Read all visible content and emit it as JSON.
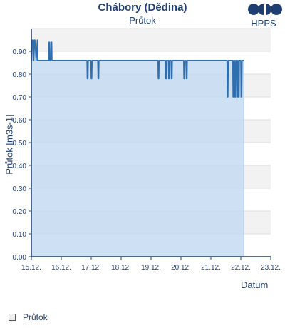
{
  "chart_data": {
    "type": "area",
    "title": "Chábory (Dědina)",
    "subtitle": "Průtok",
    "xlabel": "Datum",
    "ylabel": "Průtok [m3s-1]",
    "ylim": [
      0,
      1.0
    ],
    "yticks": [
      "0.00",
      "0.10",
      "0.20",
      "0.30",
      "0.40",
      "0.50",
      "0.60",
      "0.70",
      "0.80",
      "0.90"
    ],
    "xlim": [
      "15.12.",
      "23.12."
    ],
    "xticks": [
      "15.12.",
      "16.12.",
      "17.12.",
      "18.12.",
      "19.12.",
      "20.12.",
      "21.12.",
      "22.12.",
      "23.12."
    ],
    "grid": true,
    "legend": "bottom-left",
    "series": [
      {
        "name": "Průtok",
        "x": [
          0.0,
          0.01,
          0.04,
          0.07,
          0.08,
          0.11,
          0.12,
          0.16,
          0.2,
          0.21,
          0.58,
          0.59,
          0.61,
          0.62,
          0.65,
          0.66,
          0.68,
          0.69,
          1.86,
          1.87,
          1.89,
          1.9,
          1.99,
          2.0,
          2.02,
          2.03,
          2.22,
          2.23,
          2.25,
          2.26,
          4.23,
          4.24,
          4.26,
          4.27,
          4.48,
          4.49,
          4.51,
          4.52,
          4.58,
          4.59,
          4.61,
          4.62,
          4.67,
          4.68,
          4.7,
          4.71,
          5.09,
          5.1,
          5.12,
          5.13,
          5.17,
          5.18,
          5.2,
          5.21,
          6.54,
          6.55,
          6.57,
          6.58,
          6.73,
          6.74,
          6.76,
          6.77,
          6.79,
          6.8,
          6.82,
          6.83,
          6.86,
          6.87,
          6.89,
          6.9,
          6.91,
          6.92,
          6.94,
          6.95,
          7.0,
          7.01,
          7.03,
          7.04,
          7.1
        ],
        "values": [
          0.95,
          0.86,
          0.95,
          0.95,
          0.86,
          0.95,
          0.95,
          0.86,
          0.95,
          0.86,
          0.86,
          0.94,
          0.94,
          0.86,
          0.86,
          0.94,
          0.94,
          0.86,
          0.86,
          0.78,
          0.78,
          0.86,
          0.86,
          0.78,
          0.78,
          0.86,
          0.86,
          0.78,
          0.78,
          0.86,
          0.86,
          0.78,
          0.78,
          0.86,
          0.86,
          0.78,
          0.78,
          0.86,
          0.86,
          0.78,
          0.78,
          0.86,
          0.86,
          0.78,
          0.78,
          0.86,
          0.86,
          0.78,
          0.78,
          0.86,
          0.86,
          0.78,
          0.78,
          0.86,
          0.86,
          0.7,
          0.7,
          0.86,
          0.86,
          0.7,
          0.7,
          0.86,
          0.86,
          0.7,
          0.7,
          0.86,
          0.86,
          0.7,
          0.7,
          0.86,
          0.86,
          0.7,
          0.7,
          0.86,
          0.86,
          0.7,
          0.7,
          0.86,
          0.86
        ],
        "color": "#2f6fb0",
        "fill": "#c4dbf2"
      }
    ]
  },
  "brand": {
    "text": "HPPS",
    "color": "#1f3f73"
  },
  "colors": {
    "band": "#f2f2f2",
    "grid": "#dddddd",
    "axis": "#1f3f73"
  }
}
